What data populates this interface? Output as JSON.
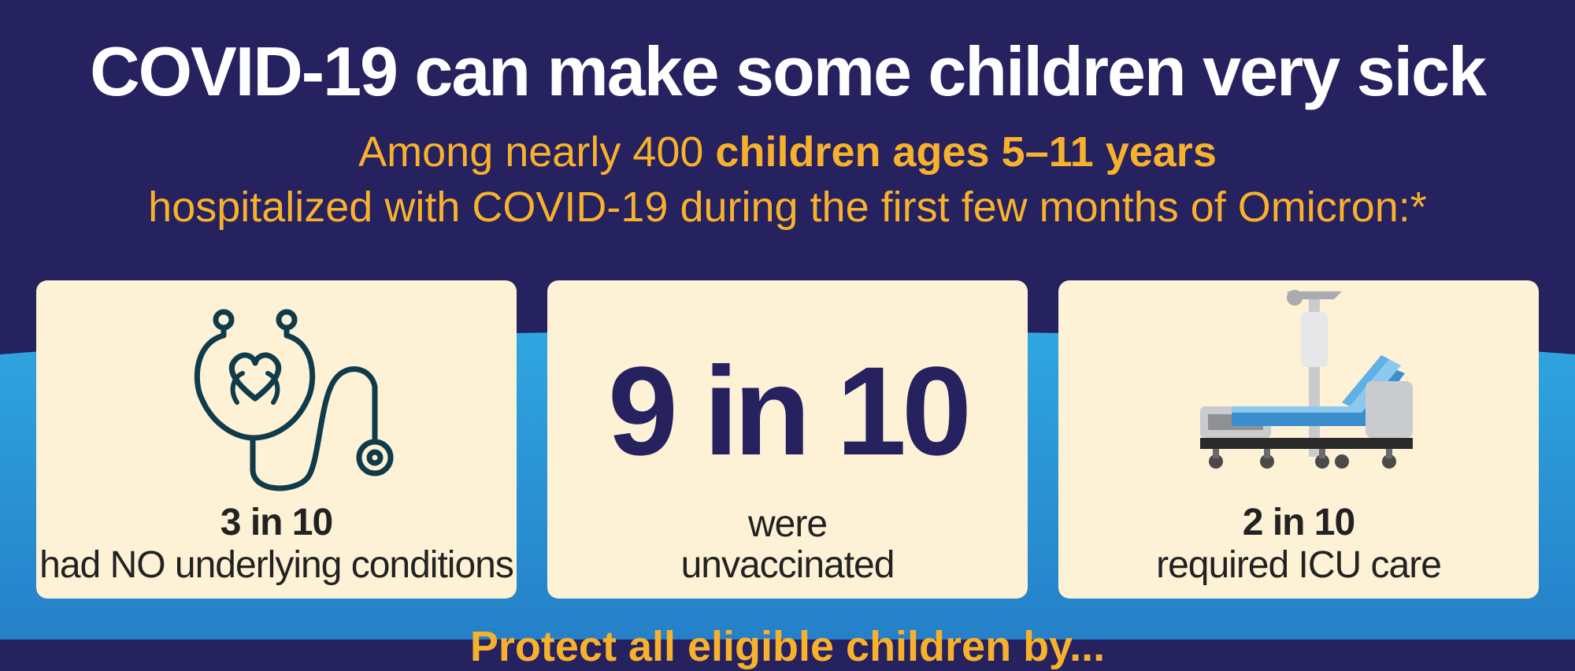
{
  "header": {
    "title": "COVID-19 can make some children very sick",
    "subtitle_part1": "Among nearly 400 ",
    "subtitle_bold": "children ages 5–11 years",
    "subtitle_line2": "hospitalized with COVID-19 during the first few months of Omicron:*"
  },
  "cards": [
    {
      "icon": "stethoscope-heart-icon",
      "stat": "3 in 10",
      "label": "had NO underlying conditions"
    },
    {
      "stat": "9 in 10",
      "label_line1": "were",
      "label_line2": "unvaccinated"
    },
    {
      "icon": "hospital-bed-icon",
      "stat": "2 in 10",
      "label": "required ICU care"
    }
  ],
  "footer": {
    "text": "Protect all eligible children by..."
  },
  "colors": {
    "navy": "#26215f",
    "gold": "#f7b12c",
    "card": "#fdf1d6",
    "blue": "#2a9bd8"
  }
}
